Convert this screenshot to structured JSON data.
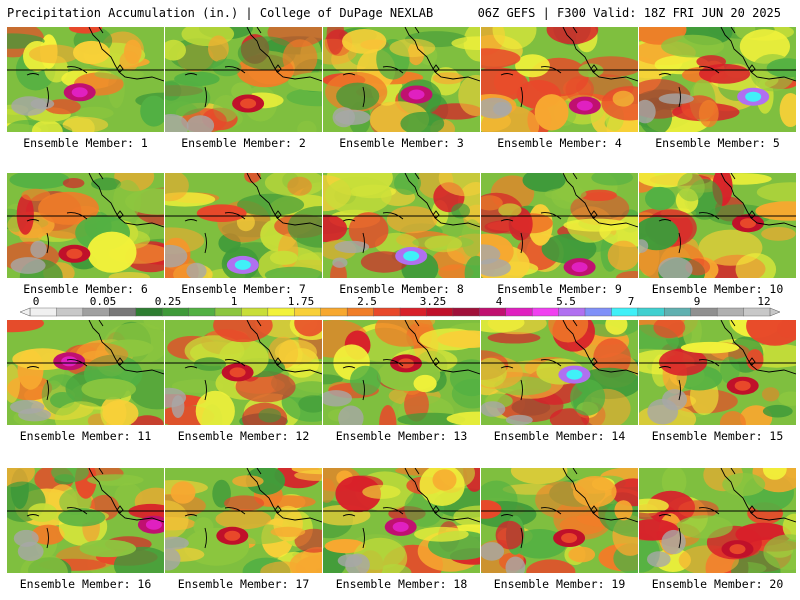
{
  "header": {
    "left": "Precipitation Accumulation (in.) | College of DuPage NEXLAB",
    "right": "06Z GEFS | F300 Valid: 18Z FRI JUN 20 2025"
  },
  "members": [
    {
      "label": "Ensemble Member: 1",
      "peak": "magenta"
    },
    {
      "label": "Ensemble Member: 2",
      "peak": "red"
    },
    {
      "label": "Ensemble Member: 3",
      "peak": "magenta"
    },
    {
      "label": "Ensemble Member: 4",
      "peak": "magenta"
    },
    {
      "label": "Ensemble Member: 5",
      "peak": "cyan"
    },
    {
      "label": "Ensemble Member: 6",
      "peak": "red"
    },
    {
      "label": "Ensemble Member: 7",
      "peak": "cyan"
    },
    {
      "label": "Ensemble Member: 8",
      "peak": "cyan"
    },
    {
      "label": "Ensemble Member: 9",
      "peak": "magenta"
    },
    {
      "label": "Ensemble Member: 10",
      "peak": "red"
    },
    {
      "label": "Ensemble Member: 11",
      "peak": "magenta"
    },
    {
      "label": "Ensemble Member: 12",
      "peak": "red"
    },
    {
      "label": "Ensemble Member: 13",
      "peak": "red"
    },
    {
      "label": "Ensemble Member: 14",
      "peak": "cyan"
    },
    {
      "label": "Ensemble Member: 15",
      "peak": "red"
    },
    {
      "label": "Ensemble Member: 16",
      "peak": "magenta"
    },
    {
      "label": "Ensemble Member: 17",
      "peak": "red"
    },
    {
      "label": "Ensemble Member: 18",
      "peak": "magenta"
    },
    {
      "label": "Ensemble Member: 19",
      "peak": "red"
    },
    {
      "label": "Ensemble Member: 20",
      "peak": "red"
    }
  ],
  "colorbar": {
    "ticks": [
      "0",
      "0.05",
      "0.25",
      "1",
      "1.75",
      "2.5",
      "3.25",
      "4",
      "5.5",
      "7",
      "9",
      "12"
    ],
    "colors": [
      "#f0f0f0",
      "#c8c8c8",
      "#a0a0a0",
      "#787878",
      "#2e7d32",
      "#3f9a3a",
      "#52b043",
      "#8cc63f",
      "#c8de38",
      "#f2f23a",
      "#f8d038",
      "#f7a830",
      "#f07d28",
      "#e8482a",
      "#d8202a",
      "#c0102a",
      "#a0103a",
      "#c01070",
      "#e020c0",
      "#f040f0",
      "#b070f0",
      "#8090f8",
      "#40f0f8",
      "#40d0d0",
      "#60b0b0",
      "#909090",
      "#b0b0b0",
      "#c8c8c8"
    ]
  }
}
